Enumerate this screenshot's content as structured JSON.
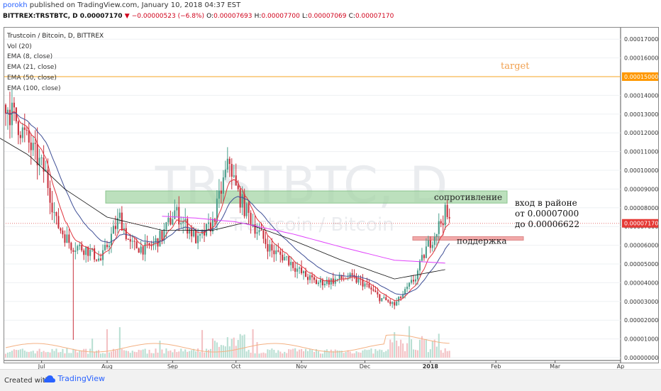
{
  "header": {
    "user": "porokh",
    "published_text": "published on TradingView.com, January 10, 2018 04:37 EST",
    "symbol": "BITTREX:TRSTBTC, D",
    "last": "0.00007170",
    "change": "−0.00000523 (−6.8%)",
    "ohlc": {
      "O": "0.00007693",
      "H": "0.00007700",
      "L": "0.00007069",
      "C": "0.00007170"
    }
  },
  "legend": {
    "title": "Trustcoin / Bitcoin, D, BITTREX",
    "indicators": [
      "Vol (20)",
      "EMA (8, close)",
      "EMA (21, close)",
      "EMA (50, close)",
      "EMA (100, close)"
    ]
  },
  "watermark": {
    "ticker": "TRSTBTC, D",
    "name": "Trustcoin / Bitcoin"
  },
  "annotations": {
    "target": "target",
    "resistance": "сопротивление",
    "support": "поддержка",
    "entry": [
      "вход в районе",
      "от 0.00007000",
      "до 0.00006622"
    ]
  },
  "footer": {
    "created_with": "Created with",
    "brand": "TradingView"
  },
  "colors": {
    "up": "#4a9e8b",
    "down": "#c8303c",
    "ema8": "#e0333c",
    "ema21": "#3f4f96",
    "ema50": "#111111",
    "ema100": "#e040fb",
    "resistance_zone": "#a5d6a7",
    "support_zone": "#ef9a9a",
    "target_line": "#f5a623",
    "target_badge": "#ff9800",
    "last_badge": "#e53935"
  },
  "chart_data": {
    "type": "candlestick",
    "title": "Trustcoin / Bitcoin, D, BITTREX",
    "xlabel": "",
    "ylabel": "",
    "x_ticks": [
      "Jul",
      "Aug",
      "Sep",
      "Oct",
      "Nov",
      "Dec",
      "2018",
      "Feb",
      "Mar",
      "Ap"
    ],
    "y_ticks": [
      "0.00017000",
      "0.00016000",
      "0.00015000",
      "0.00014000",
      "0.00013000",
      "0.00012000",
      "0.00011000",
      "0.00010000",
      "0.00009000",
      "0.00008000",
      "0.00007000",
      "0.00006000",
      "0.00005000",
      "0.00004000",
      "0.00003000",
      "0.00002000",
      "0.00001000",
      "0.00000000"
    ],
    "ylim": [
      0,
      0.000175
    ],
    "target_price": "0.00015000",
    "last_price": "0.00007170",
    "resistance_zone": [
      8.25e-05,
      8.9e-05
    ],
    "support_zone": [
      6.27e-05,
      6.46e-05
    ],
    "price_path": [
      [
        "2017-06-14",
        0.000135
      ],
      [
        "2017-06-20",
        0.000125
      ],
      [
        "2017-06-26",
        0.000112
      ],
      [
        "2017-07-03",
        9.8e-05
      ],
      [
        "2017-07-08",
        7.2e-05
      ],
      [
        "2017-07-15",
        6e-05
      ],
      [
        "2017-07-22",
        5.8e-05
      ],
      [
        "2017-07-29",
        5.2e-05
      ],
      [
        "2017-08-03",
        6.5e-05
      ],
      [
        "2017-08-07",
        7.5e-05
      ],
      [
        "2017-08-12",
        6e-05
      ],
      [
        "2017-08-20",
        5.8e-05
      ],
      [
        "2017-08-27",
        6.5e-05
      ],
      [
        "2017-09-02",
        7.8e-05
      ],
      [
        "2017-09-08",
        7e-05
      ],
      [
        "2017-09-13",
        6.2e-05
      ],
      [
        "2017-09-20",
        7.2e-05
      ],
      [
        "2017-09-26",
        9.8e-05
      ],
      [
        "2017-09-28",
        0.000105
      ],
      [
        "2017-10-01",
        9e-05
      ],
      [
        "2017-10-05",
        8e-05
      ],
      [
        "2017-10-11",
        6.8e-05
      ],
      [
        "2017-10-18",
        5.7e-05
      ],
      [
        "2017-10-25",
        5.3e-05
      ],
      [
        "2017-11-01",
        4.5e-05
      ],
      [
        "2017-11-08",
        4e-05
      ],
      [
        "2017-11-15",
        4.1e-05
      ],
      [
        "2017-11-23",
        4.3e-05
      ],
      [
        "2017-11-30",
        4e-05
      ],
      [
        "2017-12-08",
        3.2e-05
      ],
      [
        "2017-12-15",
        2.8e-05
      ],
      [
        "2017-12-20",
        3.5e-05
      ],
      [
        "2017-12-25",
        4.3e-05
      ],
      [
        "2017-12-30",
        5.8e-05
      ],
      [
        "2018-01-03",
        6.6e-05
      ],
      [
        "2018-01-08",
        7.7e-05
      ],
      [
        "2018-01-10",
        7.17e-05
      ]
    ],
    "ema100_path": [
      [
        "2017-08-27",
        7.55e-05
      ],
      [
        "2017-09-12",
        7.45e-05
      ],
      [
        "2017-10-01",
        7.25e-05
      ],
      [
        "2017-10-28",
        6.6e-05
      ],
      [
        "2017-11-20",
        5.9e-05
      ],
      [
        "2017-12-15",
        5.2e-05
      ],
      [
        "2018-01-08",
        5.05e-05
      ]
    ],
    "ema50_path": [
      [
        "2017-06-10",
        0.000118
      ],
      [
        "2017-06-25",
        0.000108
      ],
      [
        "2017-07-12",
        9e-05
      ],
      [
        "2017-08-01",
        7.5e-05
      ],
      [
        "2017-08-27",
        6.8e-05
      ],
      [
        "2017-09-20",
        6.8e-05
      ],
      [
        "2017-10-05",
        7.2e-05
      ],
      [
        "2017-10-25",
        6.4e-05
      ],
      [
        "2017-11-20",
        5.2e-05
      ],
      [
        "2017-12-15",
        4.2e-05
      ],
      [
        "2018-01-08",
        4.7e-05
      ]
    ],
    "volume_note": "volume bars rendered procedurally; peaks around Oct and late Dec 2017"
  }
}
